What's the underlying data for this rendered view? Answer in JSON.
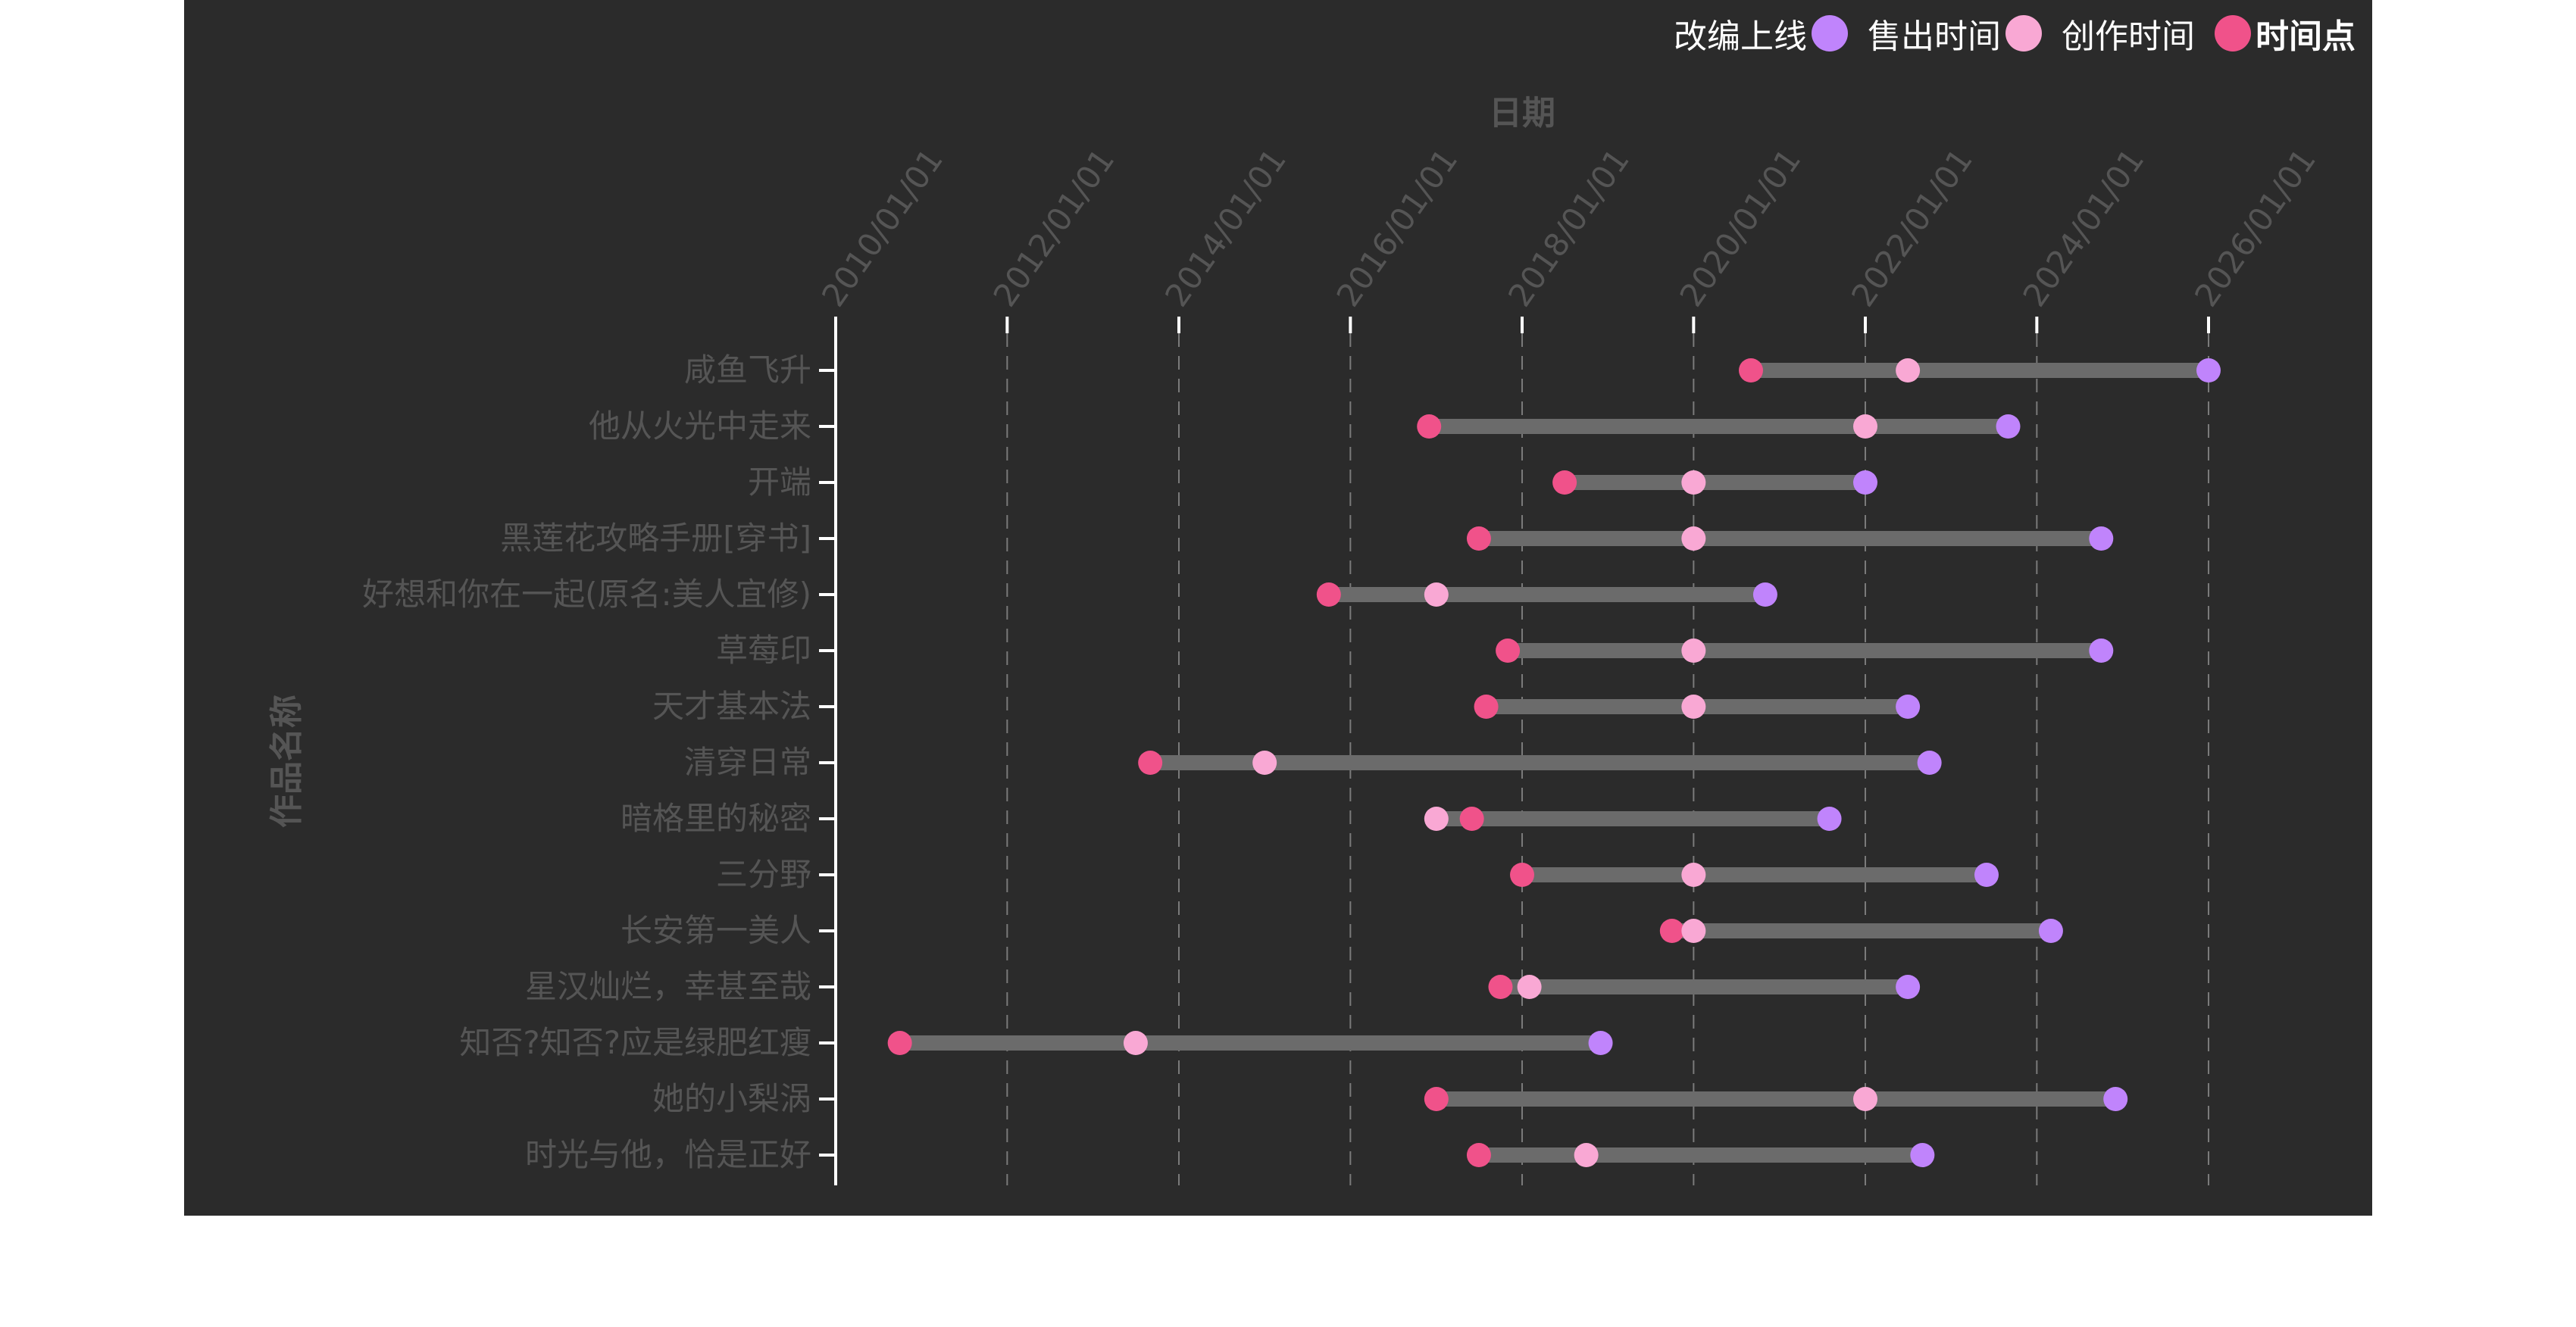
{
  "chart_data": {
    "type": "dumbbell",
    "x_title": "日期",
    "y_title": "作品名称",
    "x_ticks": [
      "2010/01/01",
      "2012/01/01",
      "2014/01/01",
      "2016/01/01",
      "2018/01/01",
      "2020/01/01",
      "2022/01/01",
      "2024/01/01",
      "2026/01/01"
    ],
    "xlim": [
      "2010/01/01",
      "2026/01/01"
    ],
    "grid": "vertical dashed",
    "legend": {
      "position": "top-right",
      "title": "时间点",
      "items": [
        {
          "label": "改编上线",
          "color": "#c084fc"
        },
        {
          "label": "售出时间",
          "color": "#f9a8d4"
        },
        {
          "label": "创作时间",
          "color": "#f0528a"
        }
      ]
    },
    "colors": {
      "adapt": "#c084fc",
      "sold": "#f9a8d4",
      "create": "#f0528a",
      "bar": "#6b6b6b",
      "background": "#2b2b2b"
    },
    "series": [
      {
        "name": "咸鱼飞升",
        "create": "2020/09/01",
        "sold": "2022/07/01",
        "adapt": "2026/01/01"
      },
      {
        "name": "他从火光中走来",
        "create": "2016/12/01",
        "sold": "2022/01/01",
        "adapt": "2023/09/01"
      },
      {
        "name": "开端",
        "create": "2018/07/01",
        "sold": "2020/01/01",
        "adapt": "2022/01/01"
      },
      {
        "name": "黑莲花攻略手册[穿书]",
        "create": "2017/07/01",
        "sold": "2020/01/01",
        "adapt": "2024/10/01"
      },
      {
        "name": "好想和你在一起(原名:美人宜修)",
        "create": "2015/10/01",
        "sold": "2017/01/01",
        "adapt": "2020/11/01"
      },
      {
        "name": "草莓印",
        "create": "2017/11/01",
        "sold": "2020/01/01",
        "adapt": "2024/10/01"
      },
      {
        "name": "天才基本法",
        "create": "2017/08/01",
        "sold": "2020/01/01",
        "adapt": "2022/07/01"
      },
      {
        "name": "清穿日常",
        "create": "2013/09/01",
        "sold": "2015/01/01",
        "adapt": "2022/10/01"
      },
      {
        "name": "暗格里的秘密",
        "create": "2017/06/01",
        "sold": "2017/01/01",
        "adapt": "2021/08/01"
      },
      {
        "name": "三分野",
        "create": "2018/01/01",
        "sold": "2020/01/01",
        "adapt": "2023/06/01"
      },
      {
        "name": "长安第一美人",
        "create": "2019/10/01",
        "sold": "2020/01/01",
        "adapt": "2024/03/01"
      },
      {
        "name": "星汉灿烂，幸甚至哉",
        "create": "2017/10/01",
        "sold": "2018/02/01",
        "adapt": "2022/07/01"
      },
      {
        "name": "知否?知否?应是绿肥红瘦",
        "create": "2010/10/01",
        "sold": "2013/07/01",
        "adapt": "2018/12/01"
      },
      {
        "name": "她的小梨涡",
        "create": "2017/01/01",
        "sold": "2022/01/01",
        "adapt": "2024/12/01"
      },
      {
        "name": "时光与他，恰是正好",
        "create": "2017/07/01",
        "sold": "2018/10/01",
        "adapt": "2022/09/01"
      }
    ]
  }
}
